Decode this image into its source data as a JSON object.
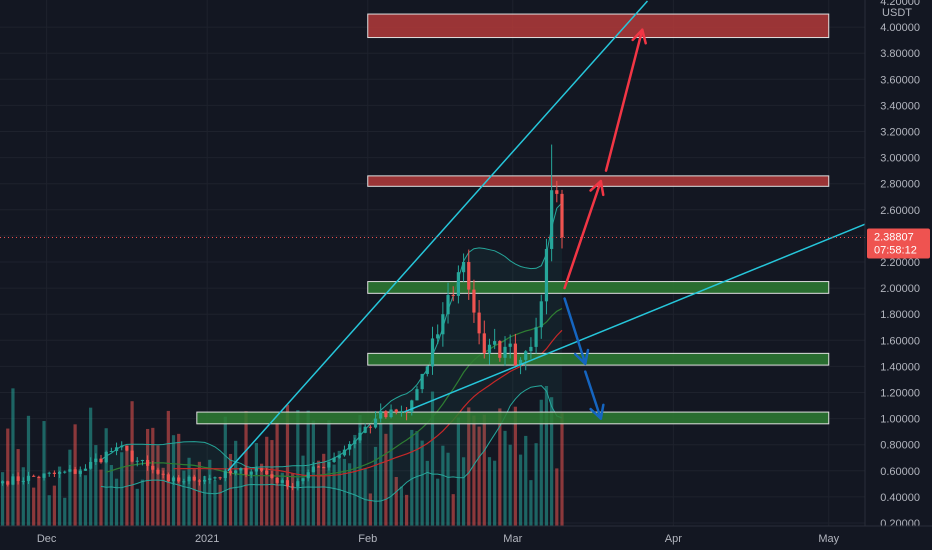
{
  "chart_data": {
    "type": "candlestick",
    "currency": "USDT",
    "y_axis": {
      "min": 0.2,
      "max": 4.2,
      "scale": "linear",
      "ticks": [
        "4.20000",
        "4.00000",
        "3.80000",
        "3.60000",
        "3.40000",
        "3.20000",
        "3.00000",
        "2.80000",
        "2.60000",
        "2.40000",
        "2.20000",
        "2.00000",
        "1.80000",
        "1.60000",
        "1.40000",
        "1.20000",
        "1.00000",
        "0.80000",
        "0.60000",
        "0.40000",
        "0.20000"
      ],
      "position": "right"
    },
    "x_axis": {
      "start": "2020-11-22",
      "end": "2021-05-08",
      "ticks": [
        {
          "label": "Dec",
          "date": "2020-12-01"
        },
        {
          "label": "2021",
          "date": "2021-01-01"
        },
        {
          "label": "Feb",
          "date": "2021-02-01"
        },
        {
          "label": "Mar",
          "date": "2021-03-01"
        },
        {
          "label": "Apr",
          "date": "2021-04-01"
        },
        {
          "label": "May",
          "date": "2021-05-01"
        }
      ]
    },
    "last_price": {
      "value": 2.38807,
      "label": "2.38807",
      "countdown": "07:58:12"
    },
    "colors": {
      "up": "#26a69a",
      "down": "#ef5350",
      "background": "#131722"
    },
    "anchors": [
      {
        "date": "2020-11-22",
        "close": 0.52
      },
      {
        "date": "2020-12-07",
        "close": 0.6
      },
      {
        "date": "2020-12-14",
        "close": 0.78
      },
      {
        "date": "2020-12-24",
        "close": 0.52
      },
      {
        "date": "2021-01-02",
        "close": 0.55
      },
      {
        "date": "2021-01-10",
        "close": 0.62
      },
      {
        "date": "2021-01-16",
        "close": 0.48
      },
      {
        "date": "2021-01-25",
        "close": 0.7
      },
      {
        "date": "2021-02-02",
        "close": 1.0
      },
      {
        "date": "2021-02-08",
        "close": 1.05
      },
      {
        "date": "2021-02-12",
        "close": 1.4
      },
      {
        "date": "2021-02-15",
        "close": 1.8
      },
      {
        "date": "2021-02-19",
        "close": 2.2
      },
      {
        "date": "2021-02-23",
        "close": 1.5
      },
      {
        "date": "2021-02-27",
        "close": 1.55
      },
      {
        "date": "2021-03-02",
        "close": 1.45
      },
      {
        "date": "2021-03-05",
        "close": 1.7
      },
      {
        "date": "2021-03-07",
        "close": 2.3
      },
      {
        "date": "2021-03-08",
        "close": 2.75
      },
      {
        "date": "2021-03-10",
        "close": 2.388
      }
    ],
    "volume_max": 1.0,
    "zones": [
      {
        "type": "resistance",
        "low": 3.92,
        "high": 4.1,
        "start": "2021-02-01",
        "end": "2021-05-01",
        "color": "#b33a3a"
      },
      {
        "type": "resistance",
        "low": 2.78,
        "high": 2.86,
        "start": "2021-02-01",
        "end": "2021-05-01",
        "color": "#b33a3a"
      },
      {
        "type": "support",
        "low": 1.96,
        "high": 2.05,
        "start": "2021-02-01",
        "end": "2021-05-01",
        "color": "#2e7d32"
      },
      {
        "type": "support",
        "low": 1.41,
        "high": 1.5,
        "start": "2021-02-01",
        "end": "2021-05-01",
        "color": "#2e7d32"
      },
      {
        "type": "support",
        "low": 0.96,
        "high": 1.05,
        "start": "2020-12-30",
        "end": "2021-05-01",
        "color": "#2e7d32"
      }
    ],
    "trendlines": [
      {
        "x1": "2021-01-05",
        "y1": 0.6,
        "x2": "2021-03-27",
        "y2": 4.2,
        "color": "#26c6da"
      },
      {
        "x1": "2021-02-08",
        "y1": 1.05,
        "x2": "2021-05-08",
        "y2": 2.49,
        "color": "#26c6da"
      }
    ],
    "arrows": [
      {
        "x1": "2021-03-11",
        "y1": 2.0,
        "x2": "2021-03-18",
        "y2": 2.82,
        "color": "#f23645"
      },
      {
        "x1": "2021-03-19",
        "y1": 2.9,
        "x2": "2021-03-26",
        "y2": 3.98,
        "color": "#f23645"
      },
      {
        "x1": "2021-03-11",
        "y1": 1.92,
        "x2": "2021-03-15",
        "y2": 1.42,
        "color": "#1565c0"
      },
      {
        "x1": "2021-03-15",
        "y1": 1.36,
        "x2": "2021-03-18",
        "y2": 1.0,
        "color": "#1565c0"
      }
    ]
  }
}
